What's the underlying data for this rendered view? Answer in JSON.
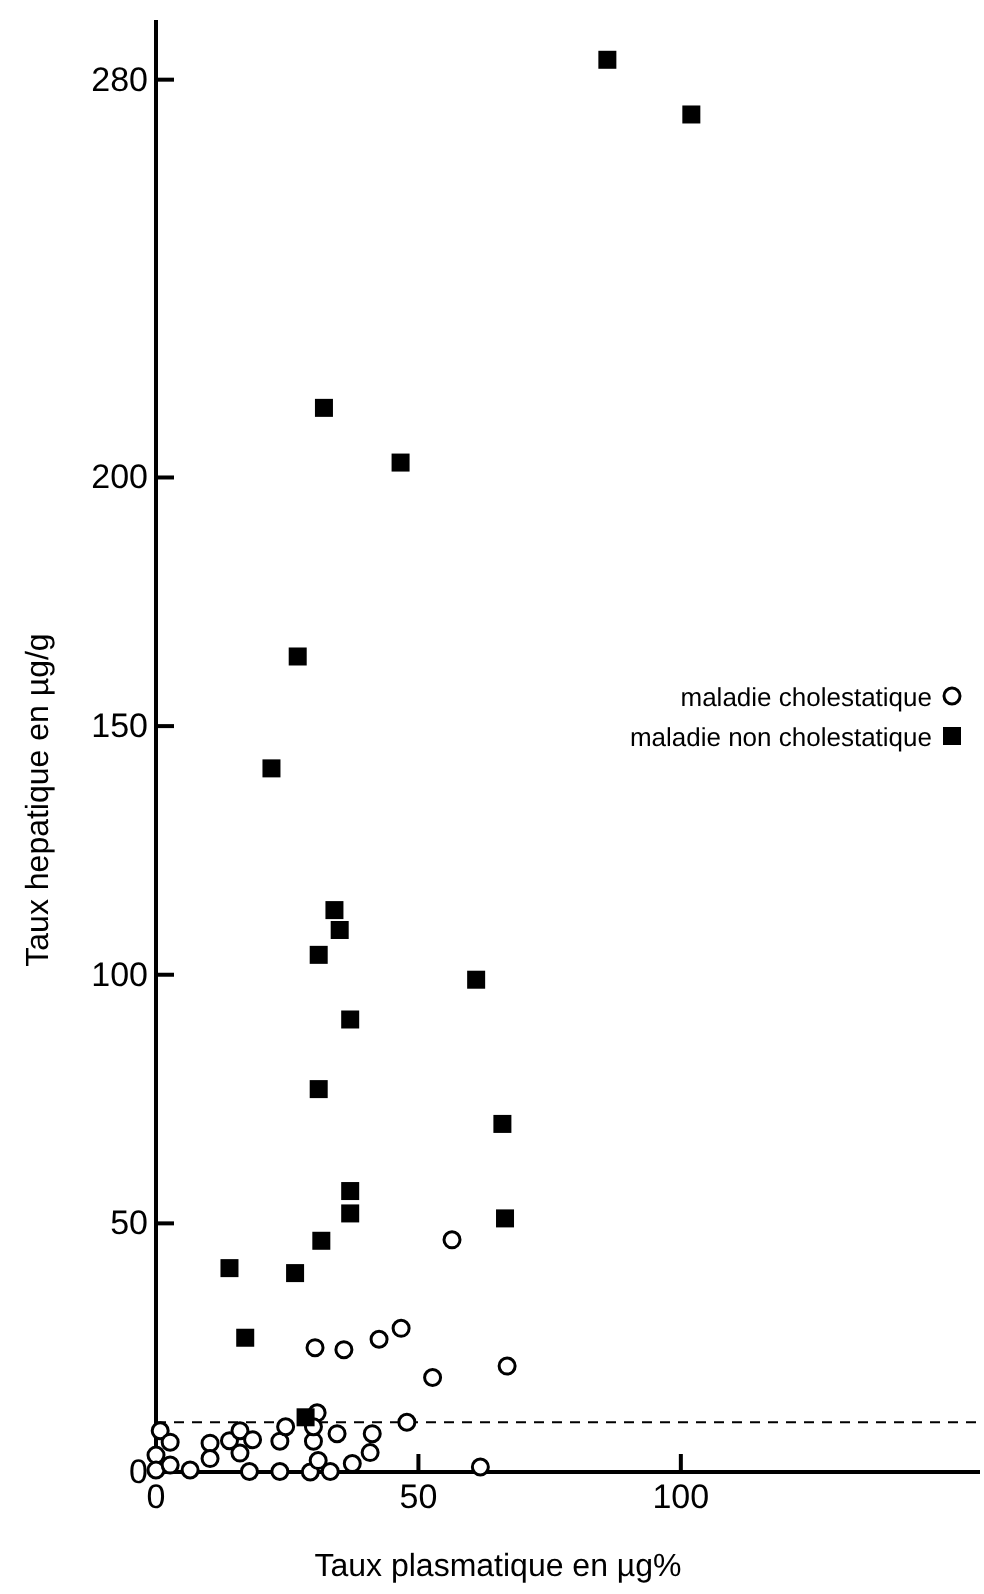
{
  "chart_data": {
    "type": "scatter",
    "xlabel": "Taux plasmatique en µg%",
    "ylabel": "Taux hepatique en µg/g",
    "xlim": [
      0,
      157
    ],
    "ylim": [
      0,
      292
    ],
    "xticks": [
      0,
      50,
      100
    ],
    "yticks": [
      0,
      50,
      100,
      150,
      200,
      280
    ],
    "legend": "right",
    "ref_lines": [
      {
        "axis": "y",
        "value": 10,
        "line_style": "dashed",
        "color": "#000000"
      }
    ],
    "series": [
      {
        "name": "maladie cholestatique",
        "color": "#000000",
        "marker": "circle",
        "x": [
          56.4,
          30.3,
          35.8,
          42.5,
          46.7,
          52.7,
          66.9,
          30.7,
          47.8,
          0.8,
          2.7,
          0,
          0,
          2.7,
          6.5,
          10.3,
          10.3,
          14,
          16,
          16,
          18.4,
          17.8,
          23.6,
          24.7,
          23.6,
          29.4,
          30,
          30,
          30.9,
          33.2,
          34.5,
          37.4,
          40.8,
          41.2,
          61.8
        ],
        "values": [
          46.7,
          25,
          24.6,
          26.7,
          28.9,
          19,
          21.3,
          11.9,
          10,
          8.3,
          6,
          3.4,
          0.4,
          1.4,
          0.4,
          5.8,
          2.7,
          6.3,
          8.3,
          3.8,
          6.5,
          0.1,
          6.2,
          9.1,
          0.1,
          0,
          6.2,
          9.1,
          2.3,
          0.1,
          7.7,
          1.7,
          3.9,
          7.7,
          1
        ]
      },
      {
        "name": "maladie non cholestatique",
        "color": "#000000",
        "marker": "square",
        "x": [
          86,
          102,
          32,
          46.6,
          27,
          22,
          34,
          35,
          31,
          61,
          37,
          31,
          66,
          37,
          37,
          66.5,
          31.5,
          14,
          26.5,
          17,
          28.5
        ],
        "values": [
          284,
          273,
          214,
          203,
          164,
          141.5,
          113,
          109,
          104,
          99,
          91,
          77,
          70,
          56.5,
          52,
          51,
          46.5,
          41,
          40,
          27,
          11
        ]
      }
    ]
  }
}
